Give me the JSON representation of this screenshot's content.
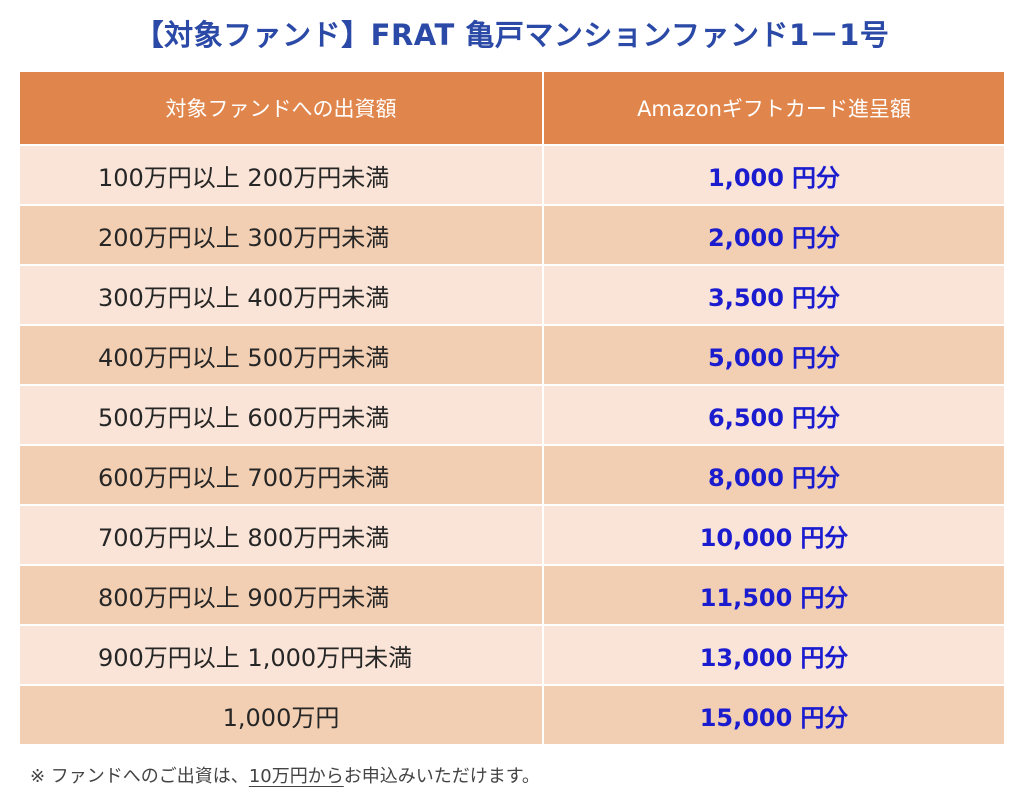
{
  "title": "【対象ファンド】FRAT 亀戸マンションファンド1－1号",
  "table": {
    "headers": [
      "対象ファンドへの出資額",
      "Amazonギフトカード進呈額"
    ],
    "rows": [
      {
        "range": "100万円以上 200万円未満",
        "amount": "1,000",
        "unit": "円分"
      },
      {
        "range": "200万円以上 300万円未満",
        "amount": "2,000",
        "unit": "円分"
      },
      {
        "range": "300万円以上 400万円未満",
        "amount": "3,500",
        "unit": "円分"
      },
      {
        "range": "400万円以上 500万円未満",
        "amount": "5,000",
        "unit": "円分"
      },
      {
        "range": "500万円以上 600万円未満",
        "amount": "6,500",
        "unit": "円分"
      },
      {
        "range": "600万円以上 700万円未満",
        "amount": "8,000",
        "unit": "円分"
      },
      {
        "range": "700万円以上 800万円未満",
        "amount": "10,000",
        "unit": "円分"
      },
      {
        "range": "800万円以上 900万円未満",
        "amount": "11,500",
        "unit": "円分"
      },
      {
        "range": "900万円以上 1,000万円未満",
        "amount": "13,000",
        "unit": "円分"
      },
      {
        "range": "1,000万円",
        "amount": "15,000",
        "unit": "円分"
      }
    ]
  },
  "note": {
    "prefix": "※ ファンドへのご出資は、",
    "underlined": "10万円から",
    "suffix": "お申込みいただけます。"
  },
  "colors": {
    "title": "#2b49a6",
    "header_bg": "#e0864c",
    "row_light": "#f9e4d7",
    "row_dark": "#f2cfb3",
    "amount_text": "#1c1ccf"
  }
}
